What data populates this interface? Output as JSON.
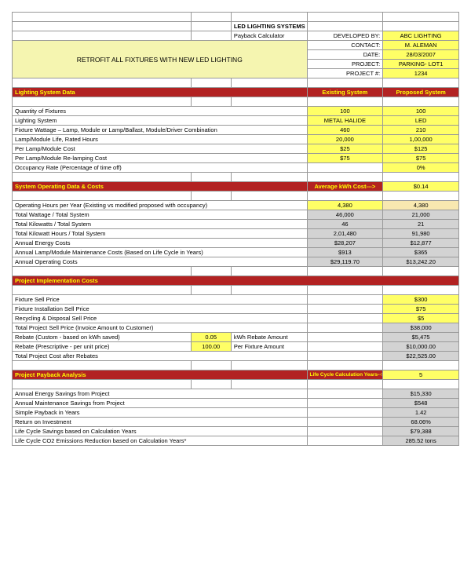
{
  "header": {
    "title": "LED LIGHTING SYSTEMS",
    "subtitle": "Payback Calculator",
    "banner": "RETROFIT ALL FIXTURES WITH NEW LED LIGHTING",
    "meta": {
      "developed_by_label": "DEVELOPED BY:",
      "developed_by": "ABC LIGHTING",
      "contact_label": "CONTACT:",
      "contact": "M. ALEMAN",
      "date_label": "DATE:",
      "date": "28/03/2007",
      "project_label": "PROJECT:",
      "project": "PARKING- LOT1",
      "projectnum_label": "PROJECT #:",
      "projectnum": "1234"
    }
  },
  "s1": {
    "title": "Lighting System Data",
    "col_existing": "Existing System",
    "col_proposed": "Proposed System",
    "rows": [
      {
        "label": "Quantity of Fixtures",
        "a": "100",
        "b": "100"
      },
      {
        "label": "Lighting System",
        "a": "METAL HALIDE",
        "b": "LED"
      },
      {
        "label": "Fixture Wattage – Lamp, Module or Lamp/Ballast, Module/Driver Combination",
        "a": "460",
        "b": "210"
      },
      {
        "label": "Lamp/Module Life, Rated Hours",
        "a": "20,000",
        "b": "1,00,000"
      },
      {
        "label": "Per Lamp/Module Cost",
        "a": "$25",
        "b": "$125"
      },
      {
        "label": "Per Lamp/Module Re-lamping Cost",
        "a": "$75",
        "b": "$75"
      },
      {
        "label": "Occupancy Rate (Percentage of time off)",
        "a": "",
        "b": "0%"
      }
    ]
  },
  "s2": {
    "title": "System Operating Data & Costs",
    "col_mid": "Average kWh Cost--->",
    "col_right": "$0.14",
    "rows": [
      {
        "label": "Operating Hours per Year (Existing vs modified proposed with occupancy)",
        "a": "4,380",
        "b": "4,380"
      },
      {
        "label": "Total Wattage / Total System",
        "a": "46,000",
        "b": "21,000"
      },
      {
        "label": "Total Kilowatts / Total System",
        "a": "46",
        "b": "21"
      },
      {
        "label": "Total Kilowatt Hours / Total System",
        "a": "2,01,480",
        "b": "91,980"
      },
      {
        "label": "Annual Energy Costs",
        "a": "$28,207",
        "b": "$12,877"
      },
      {
        "label": "Annual Lamp/Module Maintenance Costs (Based on Life Cycle in Years)",
        "a": "$913",
        "b": "$365"
      },
      {
        "label": "Annual Operating Costs",
        "a": "$29,119.70",
        "b": "$13,242.20"
      }
    ]
  },
  "s3": {
    "title": "Project Implementation Costs",
    "rows": [
      {
        "label": "Fixture Sell Price",
        "b": "$300"
      },
      {
        "label": "Fixture Installation Sell Price",
        "b": "$75"
      },
      {
        "label": "Recycling & Disposal Sell Price",
        "b": "$5"
      },
      {
        "label": "Total Project Sell Price (Invoice Amount to Customer)",
        "b": "$38,000"
      },
      {
        "label": "Rebate (Custom - based on kWh saved)",
        "mid_val": "0.05",
        "mid_lbl": "kWh Rebate Amount",
        "b": "$5,475"
      },
      {
        "label": "Rebate (Prescriptive - per unit price)",
        "mid_val": "100.00",
        "mid_lbl": "Per Fixture Amount",
        "b": "$10,000.00"
      },
      {
        "label": "Total Project Cost after Rebates",
        "b": "$22,525.00"
      }
    ]
  },
  "s4": {
    "title": "Project Payback Analysis",
    "col_mid": "Life Cycle Calculation Years-->",
    "col_right": "5",
    "rows": [
      {
        "label": "Annual Energy Savings from Project",
        "b": "$15,330"
      },
      {
        "label": "Annual Maintenance Savings from Project",
        "b": "$548"
      },
      {
        "label": "Simple Payback in Years",
        "b": "1.42"
      },
      {
        "label": "Return on Investment",
        "b": "68.06%"
      },
      {
        "label": "Life Cycle Savings based on Calculation Years",
        "b": "$79,388"
      },
      {
        "label": "Life Cycle CO2 Emissions Reduction based on Calculation Years*",
        "b": "285.52 tons"
      }
    ]
  }
}
